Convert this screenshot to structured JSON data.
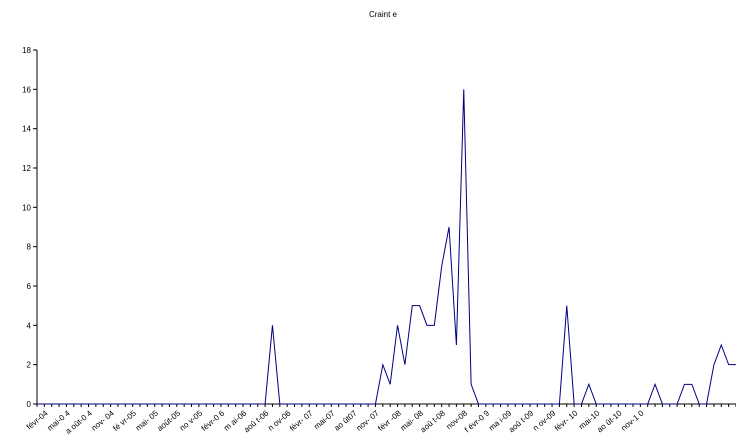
{
  "chart_data": {
    "type": "line",
    "title": "Craint e",
    "xlabel": "",
    "ylabel": "",
    "ylim": [
      0,
      18
    ],
    "yticks": [
      0,
      2,
      4,
      6,
      8,
      10,
      12,
      14,
      16,
      18
    ],
    "grid": false,
    "legend": "none",
    "x_tick_labels": [
      "févr-04",
      "mai-0 4",
      "a oût-0 4",
      "nov- 04",
      "fé vr-05",
      "mai- 05",
      "août-05",
      "no v-05",
      "févr-0 6",
      "m ai-06",
      "aoû t-06",
      "n ov-06",
      "févr- 07",
      "mai-07",
      "ao ût07",
      "nov- 07",
      "févr -08",
      "mai- 08",
      "aoû t-08",
      "nov-08",
      "f évr-0 9",
      "ma i-09",
      "aoû t-09",
      "n ov-09",
      "févr- 10",
      "mai-10",
      "ao ût-10",
      "nov-1 0"
    ],
    "colors": {
      "series": "#000080",
      "axis": "#000000"
    },
    "series": [
      {
        "values": [
          0,
          0,
          0,
          0,
          0,
          0,
          0,
          0,
          0,
          0,
          0,
          0,
          0,
          0,
          0,
          0,
          0,
          0,
          0,
          0,
          0,
          0,
          0,
          0,
          0,
          0,
          0,
          0,
          0,
          0,
          0,
          0,
          4,
          0,
          0,
          0,
          0,
          0,
          0,
          0,
          0,
          0,
          0,
          0,
          0,
          0,
          0,
          2,
          1,
          4,
          2,
          5,
          5,
          4,
          4,
          7,
          9,
          3,
          16,
          1,
          0,
          0,
          0,
          0,
          0,
          0,
          0,
          0,
          0,
          0,
          0,
          0,
          5,
          0,
          0,
          1,
          0,
          0,
          0,
          0,
          0,
          0,
          0,
          0,
          1,
          0,
          0,
          0,
          1,
          1,
          0,
          0,
          2,
          3,
          2,
          2
        ]
      }
    ]
  }
}
